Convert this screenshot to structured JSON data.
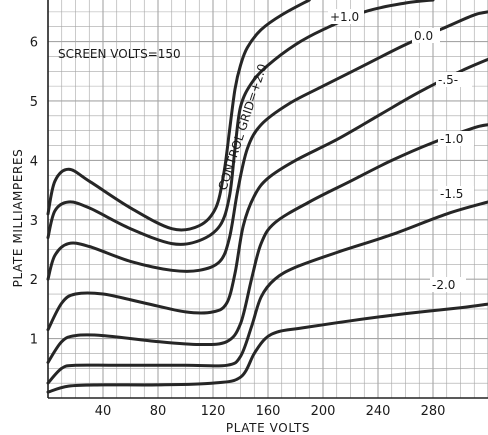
{
  "chart_data": {
    "type": "line",
    "xlabel": "PLATE VOLTS",
    "ylabel": "PLATE MILLIAMPERES",
    "xlim": [
      0,
      320
    ],
    "ylim": [
      0,
      6.7
    ],
    "x_ticks": [
      40,
      80,
      120,
      160,
      200,
      240,
      280
    ],
    "y_ticks": [
      1,
      2,
      3,
      4,
      5,
      6
    ],
    "grid": true,
    "annotation": "SCREEN VOLTS=150",
    "control_grid_label": "CONTROL GRID=+2.0",
    "colors": {
      "curve": "#262626",
      "grid": "#a6a6a6",
      "background": "#ffffff"
    },
    "series": [
      {
        "name": "+2.0",
        "label": "",
        "x": [
          0,
          5,
          15,
          30,
          60,
          90,
          110,
          122,
          128,
          132,
          136,
          140,
          145,
          155,
          170,
          190
        ],
        "y": [
          3.1,
          3.65,
          3.85,
          3.65,
          3.2,
          2.85,
          2.9,
          3.2,
          3.8,
          4.5,
          5.2,
          5.6,
          5.9,
          6.2,
          6.45,
          6.7
        ]
      },
      {
        "name": "+1.0",
        "label": "+1.0",
        "x": [
          0,
          5,
          15,
          30,
          60,
          90,
          110,
          125,
          132,
          136,
          140,
          148,
          160,
          180,
          200,
          230,
          260,
          280
        ],
        "y": [
          2.7,
          3.15,
          3.3,
          3.2,
          2.85,
          2.6,
          2.65,
          2.9,
          3.4,
          4.2,
          4.9,
          5.3,
          5.6,
          5.95,
          6.2,
          6.5,
          6.65,
          6.7
        ]
      },
      {
        "name": "0.0",
        "label": "0.0",
        "x": [
          0,
          5,
          15,
          30,
          60,
          90,
          110,
          125,
          132,
          138,
          145,
          155,
          175,
          200,
          230,
          260,
          290,
          310,
          320
        ],
        "y": [
          2.0,
          2.4,
          2.6,
          2.55,
          2.3,
          2.15,
          2.15,
          2.3,
          2.7,
          3.5,
          4.2,
          4.6,
          4.95,
          5.25,
          5.6,
          5.95,
          6.25,
          6.45,
          6.5
        ]
      },
      {
        "name": "-.5",
        "label": "-.5-",
        "x": [
          0,
          10,
          20,
          40,
          70,
          100,
          120,
          130,
          136,
          142,
          150,
          160,
          180,
          210,
          240,
          270,
          300,
          320
        ],
        "y": [
          1.15,
          1.6,
          1.75,
          1.75,
          1.6,
          1.45,
          1.45,
          1.6,
          2.1,
          2.9,
          3.4,
          3.7,
          4.0,
          4.35,
          4.75,
          5.15,
          5.5,
          5.7
        ]
      },
      {
        "name": "-1.0",
        "label": "-1.0",
        "x": [
          0,
          10,
          20,
          40,
          80,
          110,
          130,
          140,
          148,
          155,
          165,
          190,
          220,
          250,
          280,
          310,
          320
        ],
        "y": [
          0.6,
          0.95,
          1.05,
          1.05,
          0.95,
          0.9,
          0.95,
          1.25,
          2.0,
          2.6,
          2.95,
          3.3,
          3.65,
          4.0,
          4.3,
          4.55,
          4.6
        ]
      },
      {
        "name": "-1.5",
        "label": "-1.5",
        "x": [
          0,
          10,
          20,
          50,
          100,
          130,
          140,
          148,
          155,
          165,
          180,
          210,
          250,
          290,
          320
        ],
        "y": [
          0.25,
          0.5,
          0.55,
          0.55,
          0.55,
          0.55,
          0.7,
          1.2,
          1.7,
          2.0,
          2.2,
          2.45,
          2.75,
          3.1,
          3.3
        ]
      },
      {
        "name": "-2.0",
        "label": "-2.0",
        "x": [
          0,
          15,
          40,
          80,
          120,
          140,
          150,
          158,
          168,
          185,
          220,
          260,
          300,
          320
        ],
        "y": [
          0.1,
          0.2,
          0.22,
          0.22,
          0.25,
          0.35,
          0.75,
          1.0,
          1.12,
          1.18,
          1.3,
          1.42,
          1.52,
          1.58
        ]
      }
    ]
  }
}
